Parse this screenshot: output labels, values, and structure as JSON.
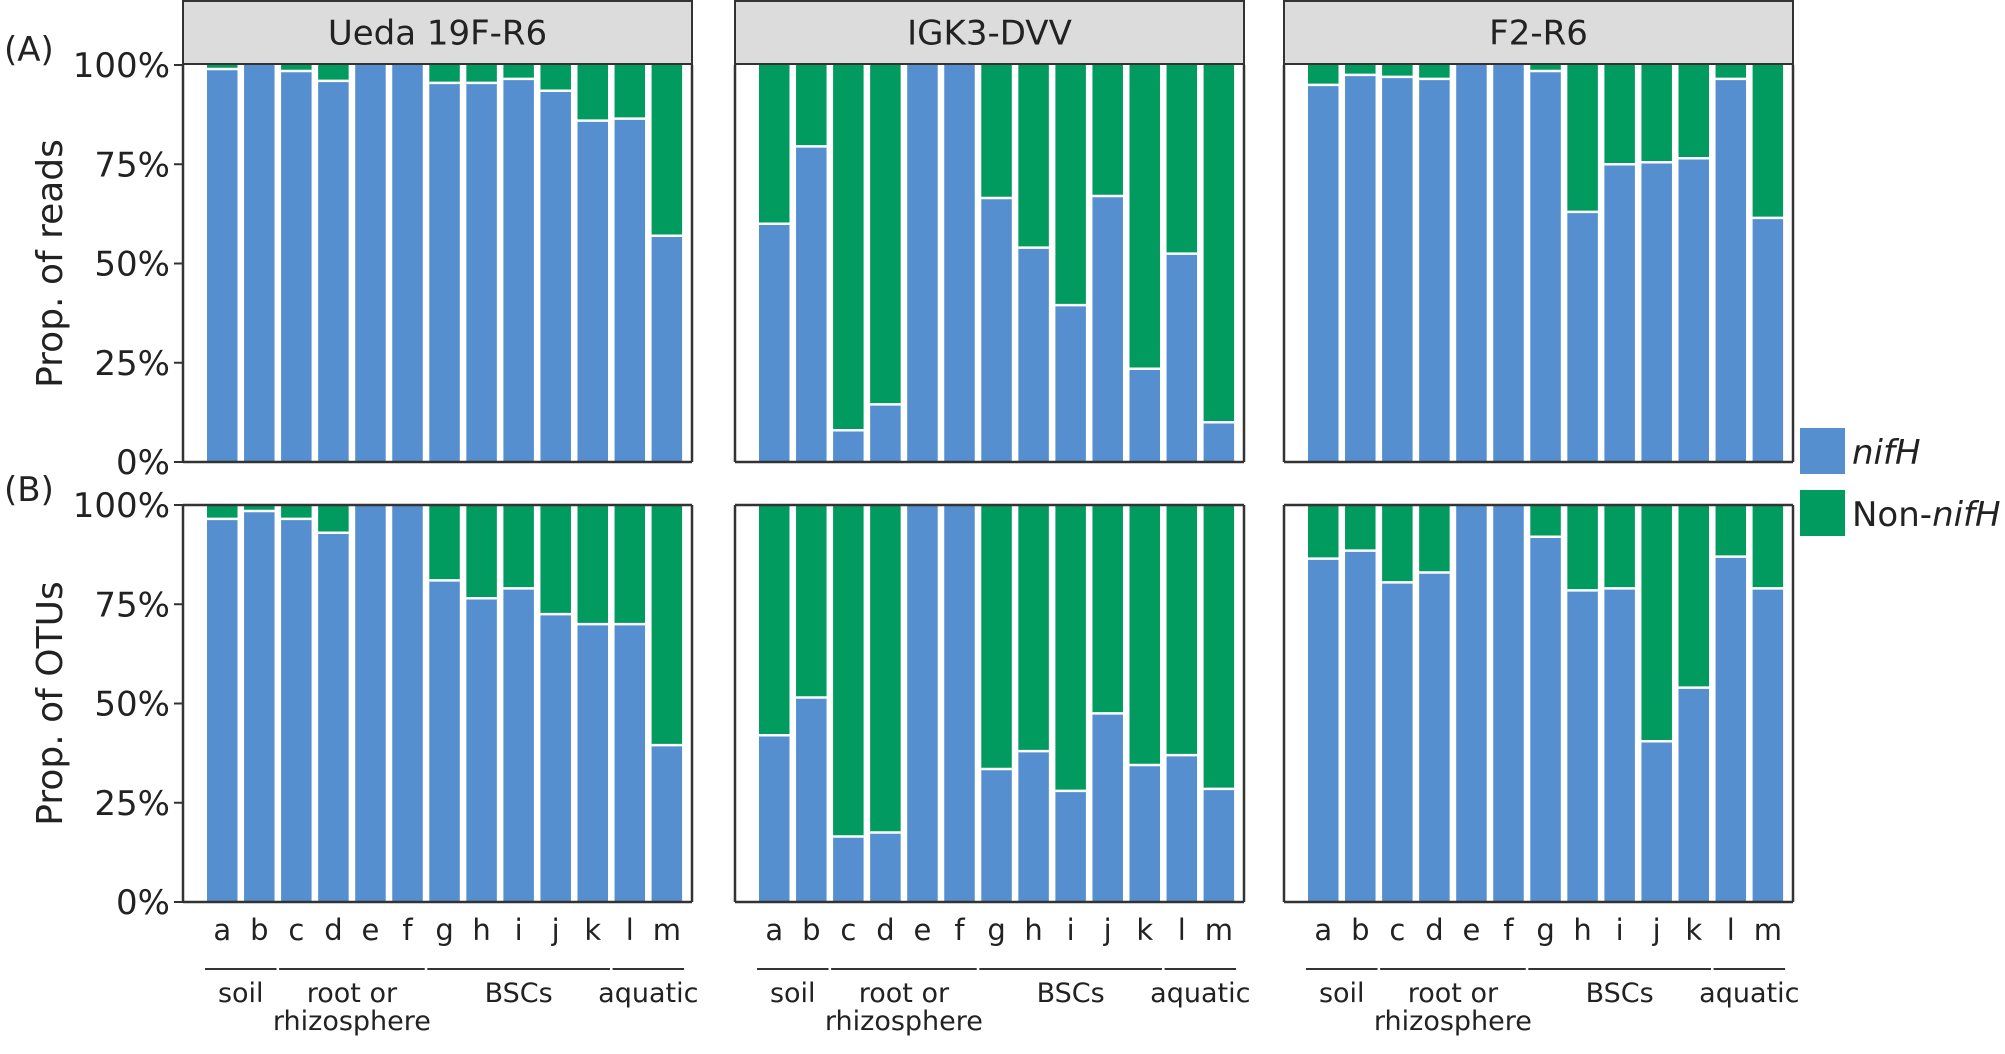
{
  "legend": {
    "nifh_label": "nifH",
    "nonnifh_prefix": "Non-",
    "nonnifh_italic": "nifH"
  },
  "colors": {
    "nifh": "#558fd0",
    "non_nifh": "#019a5f",
    "strip_bg": "#dcdcdc",
    "frame": "#333333"
  },
  "chart_data": {
    "type": "bar",
    "stacked": true,
    "ylim": [
      0,
      1
    ],
    "yticks": [
      "0%",
      "25%",
      "50%",
      "75%",
      "100%"
    ],
    "categories": [
      "a",
      "b",
      "c",
      "d",
      "e",
      "f",
      "g",
      "h",
      "i",
      "j",
      "k",
      "l",
      "m"
    ],
    "groups": [
      {
        "label": "soil",
        "lines": [
          "soil"
        ],
        "from": "a",
        "to": "b"
      },
      {
        "label": "root or rhizosphere",
        "lines": [
          "root or",
          "rhizosphere"
        ],
        "from": "c",
        "to": "f"
      },
      {
        "label": "BSCs",
        "lines": [
          "BSCs"
        ],
        "from": "g",
        "to": "k"
      },
      {
        "label": "aquatic",
        "lines": [
          "aquatic"
        ],
        "from": "l",
        "to": "m"
      }
    ],
    "facets": [
      "Ueda 19F-R6",
      "IGK3-DVV",
      "F2-R6"
    ],
    "rows": [
      {
        "tag": "(A)",
        "ylabel": "Prop. of reads",
        "series_names": [
          "nifH",
          "Non-nifH"
        ],
        "nifH": [
          [
            0.99,
            1.0,
            0.985,
            0.96,
            1.0,
            1.0,
            0.955,
            0.955,
            0.965,
            0.935,
            0.86,
            0.865,
            0.57
          ],
          [
            0.6,
            0.795,
            0.08,
            0.145,
            1.0,
            1.0,
            0.665,
            0.54,
            0.395,
            0.67,
            0.235,
            0.525,
            0.1
          ],
          [
            0.95,
            0.975,
            0.97,
            0.965,
            1.0,
            1.0,
            0.985,
            0.63,
            0.75,
            0.755,
            0.765,
            0.965,
            0.615
          ]
        ]
      },
      {
        "tag": "(B)",
        "ylabel": "Prop. of OTUs",
        "series_names": [
          "nifH",
          "Non-nifH"
        ],
        "nifH": [
          [
            0.965,
            0.985,
            0.965,
            0.93,
            1.0,
            1.0,
            0.81,
            0.765,
            0.79,
            0.725,
            0.7,
            0.7,
            0.395
          ],
          [
            0.42,
            0.515,
            0.165,
            0.175,
            1.0,
            1.0,
            0.335,
            0.38,
            0.28,
            0.475,
            0.345,
            0.37,
            0.285
          ],
          [
            0.865,
            0.885,
            0.805,
            0.83,
            1.0,
            1.0,
            0.92,
            0.785,
            0.79,
            0.405,
            0.54,
            0.87,
            0.79
          ]
        ]
      }
    ]
  }
}
